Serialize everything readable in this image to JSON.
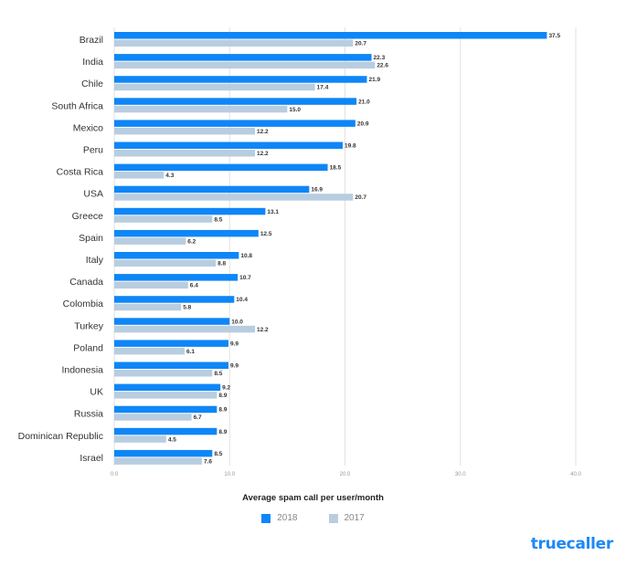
{
  "chart_data": {
    "type": "bar",
    "orientation": "horizontal",
    "categories": [
      "Brazil",
      "India",
      "Chile",
      "South Africa",
      "Mexico",
      "Peru",
      "Costa Rica",
      "USA",
      "Greece",
      "Spain",
      "Italy",
      "Canada",
      "Colombia",
      "Turkey",
      "Poland",
      "Indonesia",
      "UK",
      "Russia",
      "Dominican Republic",
      "Israel"
    ],
    "series": [
      {
        "name": "2018",
        "color": "#0f86f7",
        "values": [
          37.5,
          22.3,
          21.9,
          21.0,
          20.9,
          19.8,
          18.5,
          16.9,
          13.1,
          12.5,
          10.8,
          10.7,
          10.4,
          10.0,
          9.9,
          9.9,
          9.2,
          8.9,
          8.9,
          8.5
        ]
      },
      {
        "name": "2017",
        "color": "#b8cde0",
        "values": [
          20.7,
          22.6,
          17.4,
          15.0,
          12.2,
          12.2,
          4.3,
          20.7,
          8.5,
          6.2,
          8.8,
          6.4,
          5.8,
          12.2,
          6.1,
          8.5,
          8.9,
          6.7,
          4.5,
          7.6
        ]
      }
    ],
    "xlabel": "Average spam call per user/month",
    "ylabel": "",
    "xlim": [
      0,
      40
    ],
    "ticks": [
      "0.0",
      "10.0",
      "20.0",
      "30.0",
      "40.0"
    ],
    "grid": true,
    "legend_position": "bottom-center"
  },
  "legend": {
    "label_2018": "2018",
    "label_2017": "2017"
  },
  "brand": {
    "logo_text": "truecaller",
    "logo_color": "#1e88f5"
  }
}
